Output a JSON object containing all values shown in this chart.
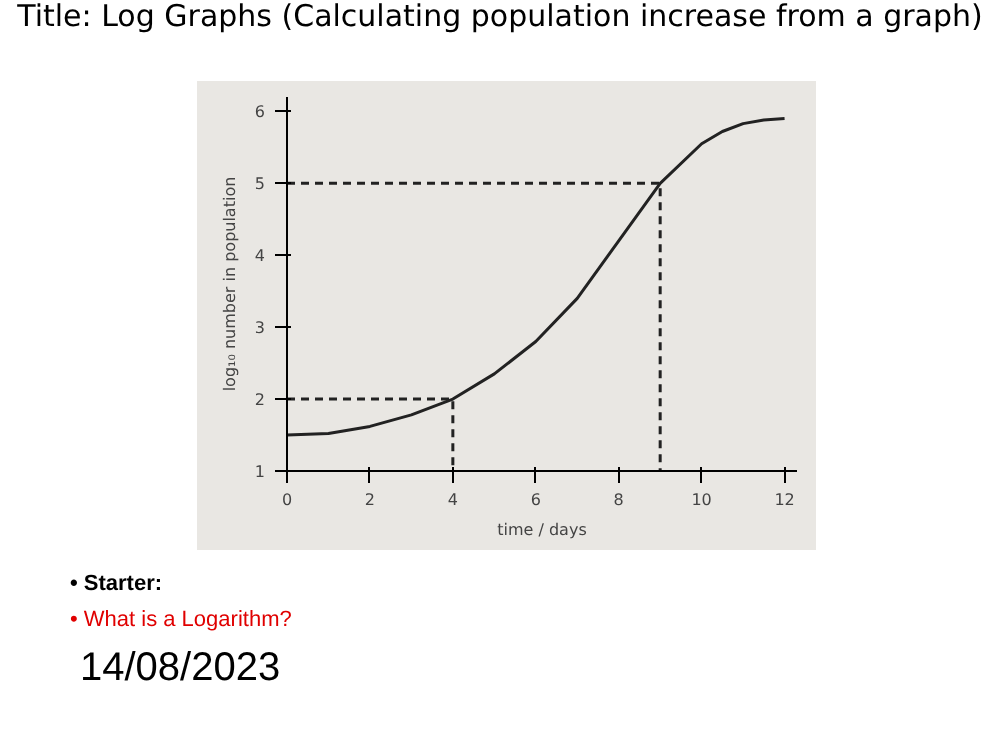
{
  "chart_data": {
    "type": "line",
    "title": "Title: Log Graphs (Calculating population increase from a graph)",
    "xlabel": "time / days",
    "ylabel": "log₁₀ number in population",
    "annotations": [
      "• Starter:",
      "• What is a Logarithm?",
      "14/08/2023"
    ],
    "xlim": [
      0,
      12.3
    ],
    "ylim": [
      1,
      6.2
    ],
    "xticks": [
      0,
      2,
      4,
      6,
      8,
      10,
      12
    ],
    "yticks": [
      1,
      2,
      3,
      4,
      5,
      6
    ],
    "marker": "none",
    "series": [
      {
        "color": "#222222",
        "line_style": "solid",
        "x": [
          0,
          1,
          2,
          3,
          4,
          5,
          6,
          7,
          8,
          9,
          10,
          10.5,
          11,
          11.5,
          12
        ],
        "values": [
          1.5,
          1.52,
          1.62,
          1.78,
          2.0,
          2.35,
          2.8,
          3.4,
          4.2,
          5.0,
          5.55,
          5.72,
          5.83,
          5.88,
          5.9
        ]
      },
      {
        "color": "#222222",
        "line_style": "dashed",
        "x": [
          0,
          4,
          4
        ],
        "values": [
          2,
          2,
          1
        ]
      },
      {
        "color": "#222222",
        "line_style": "dashed",
        "x": [
          0,
          9,
          9
        ],
        "values": [
          5,
          5,
          1
        ]
      }
    ]
  }
}
